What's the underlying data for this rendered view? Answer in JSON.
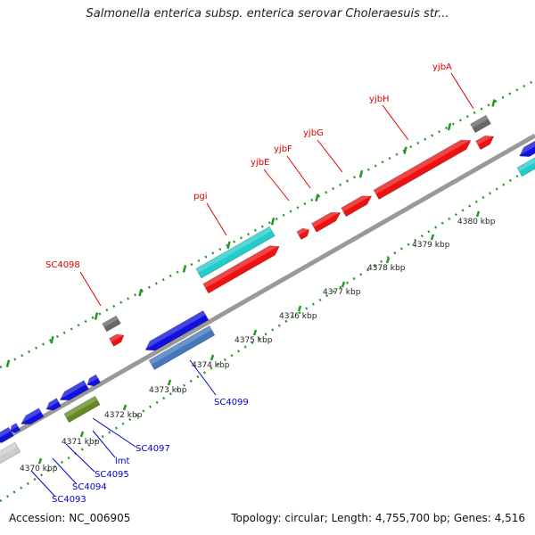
{
  "title": "Salmonella enterica subsp. enterica serovar Choleraesuis str...",
  "footer": {
    "accession": "Accession: NC_006905",
    "topology": "Topology: circular; Length: 4,755,700 bp; Genes: 4,516"
  },
  "colors": {
    "forward_cds": "#ee1111",
    "forward_rna": "#22cccc",
    "reverse_cds": "#1111dd",
    "reverse_rna": "#4477bb",
    "other": "#666666",
    "other_light": "#cccccc",
    "pseudo": "#668822",
    "backbone": "#888888",
    "tick": "#229922"
  },
  "scale_labels": [
    "4370 kbp",
    "4371 kbp",
    "4372 kbp",
    "4373 kbp",
    "4374 kbp",
    "4375 kbp",
    "4376 kbp",
    "4377 kbp",
    "4378 kbp",
    "4379 kbp",
    "4380 kbp"
  ],
  "gene_labels": {
    "top": [
      "SC4098",
      "pgi",
      "yjbE",
      "yjbF",
      "yjbG",
      "yjbH",
      "yjbA"
    ],
    "bottom": [
      "SC4099",
      "SC4097",
      "lmt",
      "SC4095",
      "SC4094",
      "SC4093"
    ]
  }
}
